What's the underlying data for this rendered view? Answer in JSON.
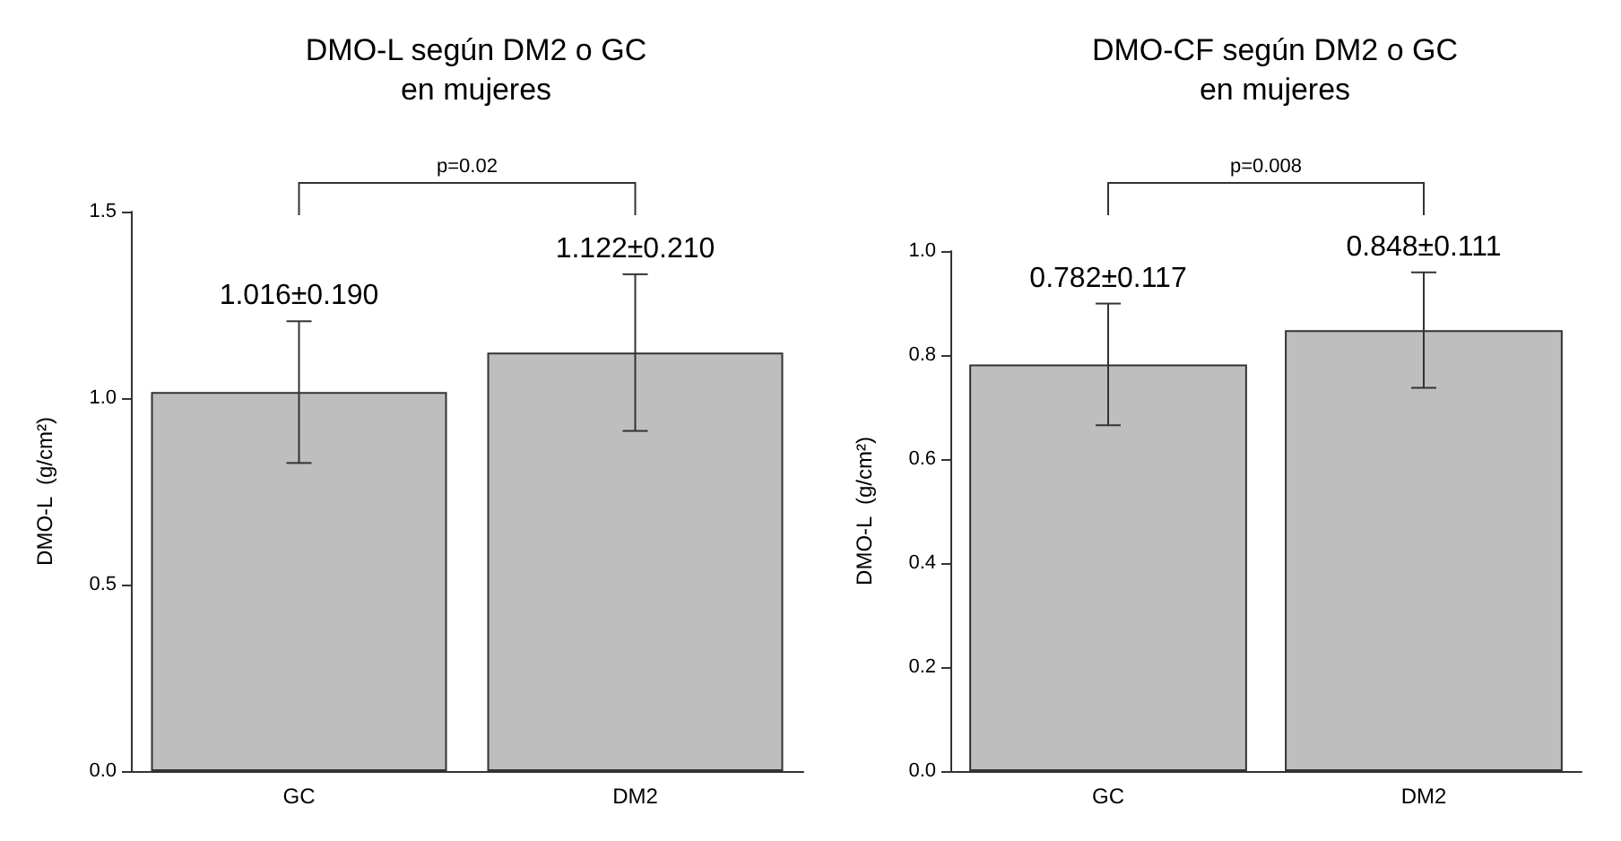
{
  "chart_data": [
    {
      "type": "bar",
      "title": "DMO-L según DM2 o GC\nen mujeres",
      "ylabel": "DMO-L  (g/cm²)",
      "categories": [
        "GC",
        "DM2"
      ],
      "values": [
        1.016,
        1.122
      ],
      "errors": [
        0.19,
        0.21
      ],
      "value_labels": [
        "1.016±0.190",
        "1.122±0.210"
      ],
      "color": "#bebebe",
      "ylim": [
        0,
        1.5
      ],
      "yticks": [
        {
          "value": 0,
          "label": "0.0"
        },
        {
          "value": 0.5,
          "label": "0.5"
        },
        {
          "value": 1,
          "label": "1.0"
        },
        {
          "value": 1.5,
          "label": "1.5"
        }
      ],
      "grid": false,
      "annotations": [
        "p=0.02"
      ]
    },
    {
      "type": "bar",
      "title": "DMO-CF según DM2 o GC\nen mujeres",
      "ylabel": "DMO-L  (g/cm²)",
      "categories": [
        "GC",
        "DM2"
      ],
      "values": [
        0.782,
        0.848
      ],
      "errors": [
        0.117,
        0.111
      ],
      "value_labels": [
        "0.782±0.117",
        "0.848±0.111"
      ],
      "color": "#bebebe",
      "ylim": [
        0,
        1.0
      ],
      "yticks": [
        {
          "value": 0,
          "label": "0.0"
        },
        {
          "value": 0.2,
          "label": "0.2"
        },
        {
          "value": 0.4,
          "label": "0.4"
        },
        {
          "value": 0.6,
          "label": "0.6"
        },
        {
          "value": 0.8,
          "label": "0.8"
        },
        {
          "value": 1,
          "label": "1.0"
        }
      ],
      "grid": false,
      "annotations": [
        "p=0.008"
      ]
    }
  ]
}
